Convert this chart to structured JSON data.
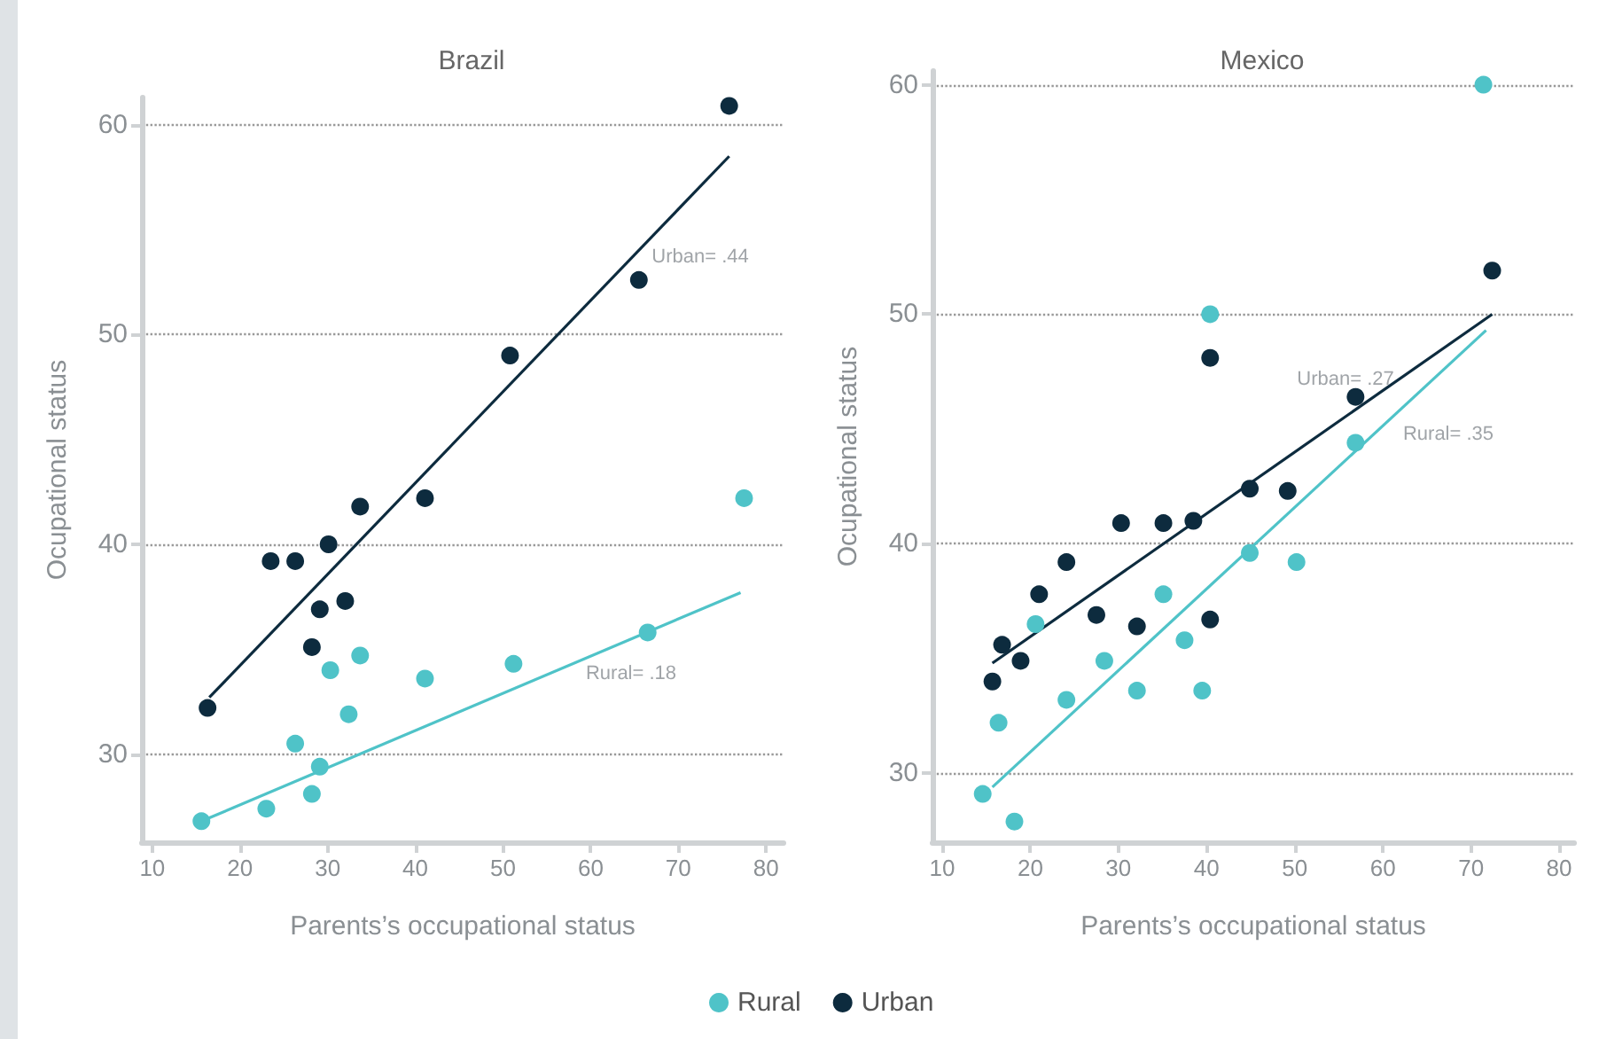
{
  "chart_data": [
    {
      "type": "scatter",
      "title": "Brazil",
      "xlabel": "Parents’s occupational status",
      "ylabel": "Ocupational status",
      "xlim": [
        8.8,
        82
      ],
      "xticks": [
        10,
        20,
        30,
        40,
        50,
        60,
        70,
        80
      ],
      "ylim": [
        25.8,
        61.3
      ],
      "yticks": [
        30,
        40,
        50,
        60
      ],
      "grid": "y",
      "legend": "bottom",
      "marker": "circle",
      "series": [
        {
          "name": "Rural",
          "color": "#4fc3c8",
          "x": [
            15.6,
            23.0,
            28.2,
            29.1,
            26.3,
            32.4,
            30.3,
            33.7,
            41.1,
            51.2,
            66.5,
            77.5
          ],
          "values": [
            26.8,
            27.4,
            28.1,
            29.4,
            30.5,
            31.9,
            34.0,
            34.7,
            33.6,
            34.3,
            35.8,
            42.2
          ]
        },
        {
          "name": "Urban",
          "color": "#0d2b3e",
          "x": [
            16.3,
            23.5,
            26.3,
            30.1,
            33.7,
            29.1,
            32.0,
            28.2,
            41.1,
            50.8,
            65.5,
            75.8
          ],
          "values": [
            32.2,
            39.2,
            39.2,
            40.0,
            41.8,
            36.9,
            37.3,
            35.1,
            42.2,
            49.0,
            52.6,
            60.9
          ]
        },
        {
          "type": "line",
          "marker": "none",
          "color": "#4fc3c8",
          "x": [
            15.6,
            77.1
          ],
          "values": [
            26.8,
            37.7
          ]
        },
        {
          "type": "line",
          "marker": "none",
          "color": "#0d2b3e",
          "x": [
            16.5,
            75.8
          ],
          "values": [
            32.7,
            58.5
          ]
        }
      ],
      "annotations": [
        "Urban= .44",
        "Rural= .18"
      ]
    },
    {
      "type": "scatter",
      "title": "Mexico",
      "xlabel": "Parents’s occupational status",
      "ylabel": "Ocupational status",
      "xlim": [
        8.9,
        81.7
      ],
      "xticks": [
        10,
        20,
        30,
        40,
        50,
        60,
        70,
        80
      ],
      "ylim": [
        27.0,
        60.6
      ],
      "yticks": [
        30,
        40,
        50,
        60
      ],
      "grid": "y",
      "legend": "bottom",
      "marker": "circle",
      "series": [
        {
          "name": "Rural",
          "color": "#4fc3c8",
          "x": [
            14.6,
            16.4,
            18.2,
            20.6,
            24.1,
            28.4,
            32.1,
            35.1,
            37.5,
            39.5,
            40.4,
            44.9,
            50.2,
            56.9,
            71.4
          ],
          "values": [
            29.1,
            32.2,
            27.9,
            36.5,
            33.2,
            34.9,
            33.6,
            37.8,
            35.8,
            33.6,
            50.0,
            39.6,
            39.2,
            44.4,
            60.0
          ]
        },
        {
          "name": "Urban",
          "color": "#0d2b3e",
          "x": [
            15.7,
            16.8,
            18.9,
            21.0,
            24.1,
            27.5,
            30.3,
            32.1,
            35.1,
            38.5,
            40.4,
            40.4,
            44.9,
            49.2,
            56.9,
            72.4
          ],
          "values": [
            34.0,
            35.6,
            34.9,
            37.8,
            39.2,
            36.9,
            40.9,
            36.4,
            40.9,
            41.0,
            48.1,
            36.7,
            42.4,
            42.3,
            46.4,
            51.9
          ]
        },
        {
          "type": "line",
          "marker": "none",
          "color": "#4fc3c8",
          "x": [
            15.7,
            71.7
          ],
          "values": [
            29.4,
            49.3
          ]
        },
        {
          "type": "line",
          "marker": "none",
          "color": "#0d2b3e",
          "x": [
            15.7,
            72.4
          ],
          "values": [
            34.8,
            50.0
          ]
        }
      ],
      "annotations": [
        "Urban= .27",
        "Rural= .35"
      ]
    }
  ]
}
